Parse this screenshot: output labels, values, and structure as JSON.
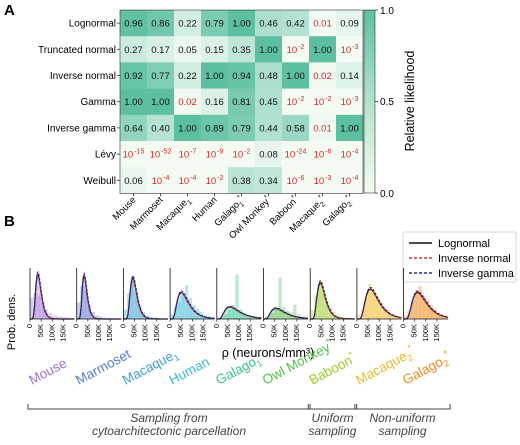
{
  "panel_labels": [
    "A",
    "B"
  ],
  "colors": {
    "cmap_high": "#5cbfa2",
    "cmap_low": "#f3fbf3",
    "sub_threshold_text": "#d62728",
    "normal_text": "#111111",
    "lognormal": "#111111",
    "inverse_normal": "#e0302f",
    "inverse_gamma": "#2b2f9e",
    "datasets": [
      "#9b70d8",
      "#5a78d8",
      "#3aa0d0",
      "#3cb8d8",
      "#36c38f",
      "#53c04a",
      "#9ccb2a",
      "#f1b72c",
      "#ef8a1c"
    ]
  },
  "legend_entries": [
    "Lognormal",
    "Inverse normal",
    "Inverse gamma"
  ],
  "bottom_groups": [
    {
      "label_lines": [
        "Sampling from",
        "cytoarchitectonic parcellation"
      ]
    },
    {
      "label_lines": [
        "Uniform",
        "sampling"
      ]
    },
    {
      "label_lines": [
        "Non-uniform",
        "sampling"
      ]
    }
  ],
  "chart_data": [
    {
      "type": "heatmap",
      "title": "",
      "colorbar_label": "Relative likelihood",
      "colorbar_ticks": [
        "0.0",
        "0.5",
        "1.0"
      ],
      "colorbar_range": [
        0,
        1
      ],
      "rows": [
        "Lognormal",
        "Truncated normal",
        "Inverse normal",
        "Gamma",
        "Inverse gamma",
        "Lévy",
        "Weibull"
      ],
      "columns": [
        {
          "base": "Mouse",
          "sub": "",
          "star": false
        },
        {
          "base": "Marmoset",
          "sub": "",
          "star": false
        },
        {
          "base": "Macaque",
          "sub": "1",
          "star": false
        },
        {
          "base": "Human",
          "sub": "",
          "star": false
        },
        {
          "base": "Galago",
          "sub": "1",
          "star": true
        },
        {
          "base": "Owl Monkey",
          "sub": "",
          "star": true
        },
        {
          "base": "Baboon",
          "sub": "",
          "star": true
        },
        {
          "base": "Macaque",
          "sub": "2",
          "star": true
        },
        {
          "base": "Galago",
          "sub": "2",
          "star": true
        }
      ],
      "cells": [
        [
          {
            "v": 0.96,
            "t": "0.96"
          },
          {
            "v": 0.86,
            "t": "0.86"
          },
          {
            "v": 0.22,
            "t": "0.22"
          },
          {
            "v": 0.79,
            "t": "0.79"
          },
          {
            "v": 1.0,
            "t": "1.00"
          },
          {
            "v": 0.46,
            "t": "0.46"
          },
          {
            "v": 0.42,
            "t": "0.42"
          },
          {
            "v": 0.01,
            "t": "0.01",
            "red": true
          },
          {
            "v": 0.09,
            "t": "0.09"
          }
        ],
        [
          {
            "v": 0.27,
            "t": "0.27"
          },
          {
            "v": 0.17,
            "t": "0.17"
          },
          {
            "v": 0.05,
            "t": "0.05"
          },
          {
            "v": 0.15,
            "t": "0.15"
          },
          {
            "v": 0.35,
            "t": "0.35"
          },
          {
            "v": 1.0,
            "t": "1.00"
          },
          {
            "v": 0,
            "t": "10",
            "e": "-2",
            "red": true
          },
          {
            "v": 1.0,
            "t": "1.00"
          },
          {
            "v": 0,
            "t": "10",
            "e": "-3",
            "red": true
          }
        ],
        [
          {
            "v": 0.92,
            "t": "0.92"
          },
          {
            "v": 0.77,
            "t": "0.77"
          },
          {
            "v": 0.22,
            "t": "0.22"
          },
          {
            "v": 1.0,
            "t": "1.00"
          },
          {
            "v": 0.94,
            "t": "0.94"
          },
          {
            "v": 0.48,
            "t": "0.48"
          },
          {
            "v": 1.0,
            "t": "1.00"
          },
          {
            "v": 0.02,
            "t": "0.02",
            "red": true
          },
          {
            "v": 0.14,
            "t": "0.14"
          }
        ],
        [
          {
            "v": 1.0,
            "t": "1.00"
          },
          {
            "v": 1.0,
            "t": "1.00"
          },
          {
            "v": 0.02,
            "t": "0.02",
            "red": true
          },
          {
            "v": 0.16,
            "t": "0.16"
          },
          {
            "v": 0.81,
            "t": "0.81"
          },
          {
            "v": 0.45,
            "t": "0.45"
          },
          {
            "v": 0,
            "t": "10",
            "e": "-2",
            "red": true
          },
          {
            "v": 0,
            "t": "10",
            "e": "-2",
            "red": true
          },
          {
            "v": 0,
            "t": "10",
            "e": "-3",
            "red": true
          }
        ],
        [
          {
            "v": 0.64,
            "t": "0.64"
          },
          {
            "v": 0.4,
            "t": "0.40"
          },
          {
            "v": 1.0,
            "t": "1.00"
          },
          {
            "v": 0.89,
            "t": "0.89"
          },
          {
            "v": 0.79,
            "t": "0.79"
          },
          {
            "v": 0.44,
            "t": "0.44"
          },
          {
            "v": 0.58,
            "t": "0.58"
          },
          {
            "v": 0.01,
            "t": "0.01",
            "red": true
          },
          {
            "v": 1.0,
            "t": "1.00"
          }
        ],
        [
          {
            "v": 0,
            "t": "10",
            "e": "-15",
            "red": true
          },
          {
            "v": 0,
            "t": "10",
            "e": "-52",
            "red": true
          },
          {
            "v": 0,
            "t": "10",
            "e": "-7",
            "red": true
          },
          {
            "v": 0,
            "t": "10",
            "e": "-9",
            "red": true
          },
          {
            "v": 0,
            "t": "10",
            "e": "-2",
            "red": true
          },
          {
            "v": 0.08,
            "t": "0.08"
          },
          {
            "v": 0,
            "t": "10",
            "e": "-24",
            "red": true
          },
          {
            "v": 0,
            "t": "10",
            "e": "-6",
            "red": true
          },
          {
            "v": 0,
            "t": "10",
            "e": "-4",
            "red": true
          }
        ],
        [
          {
            "v": 0.06,
            "t": "0.06"
          },
          {
            "v": 0,
            "t": "10",
            "e": "-4",
            "red": true
          },
          {
            "v": 0,
            "t": "10",
            "e": "-4",
            "red": true
          },
          {
            "v": 0,
            "t": "10",
            "e": "-2",
            "red": true
          },
          {
            "v": 0.38,
            "t": "0.38"
          },
          {
            "v": 0.34,
            "t": "0.34"
          },
          {
            "v": 0,
            "t": "10",
            "e": "-6",
            "red": true
          },
          {
            "v": 0,
            "t": "10",
            "e": "-3",
            "red": true
          },
          {
            "v": 0,
            "t": "10",
            "e": "-4",
            "red": true
          }
        ]
      ]
    },
    {
      "type": "line",
      "title": "",
      "ylabel": "Prob. dens.",
      "xlabel": "ρ (neurons/mm³)",
      "xlim": [
        0,
        200000
      ],
      "x_ticks": [
        "0",
        "50K",
        "100K",
        "150K"
      ],
      "series_names": [
        "Lognormal",
        "Inverse normal",
        "Inverse gamma"
      ],
      "panels": [
        {
          "dataset": "Mouse",
          "sub": "",
          "star": false,
          "peak_x": 35000,
          "height": 0.92,
          "spread": 0.35,
          "hist_heights": [
            0.45,
            0.55,
            0.5,
            0.35,
            0.2,
            0.12,
            0.08,
            0.06,
            0.05,
            0.04,
            0.03,
            0.02
          ]
        },
        {
          "dataset": "Marmoset",
          "sub": "",
          "star": false,
          "peak_x": 33000,
          "height": 0.9,
          "spread": 0.33,
          "hist_heights": [
            0.35,
            0.7,
            0.6,
            0.3,
            0.15,
            0.08,
            0.05,
            0.03,
            0.02,
            0.02,
            0.01,
            0.01
          ]
        },
        {
          "dataset": "Macaque",
          "sub": "1",
          "star": false,
          "peak_x": 42000,
          "height": 0.85,
          "spread": 0.35,
          "hist_heights": [
            0.2,
            0.55,
            0.82,
            0.55,
            0.3,
            0.15,
            0.08,
            0.05,
            0.03,
            0.02,
            0.01,
            0.01
          ]
        },
        {
          "dataset": "Human",
          "sub": "",
          "star": false,
          "peak_x": 50000,
          "height": 0.55,
          "spread": 0.5,
          "hist_heights": [
            0.1,
            0.25,
            0.35,
            0.5,
            0.72,
            0.45,
            0.3,
            0.22,
            0.15,
            0.08,
            0.05,
            0.03
          ]
        },
        {
          "dataset": "Galago",
          "sub": "1",
          "star": true,
          "peak_x": 58000,
          "height": 0.25,
          "spread": 0.55,
          "hist_heights": [
            0.02,
            0.05,
            0.1,
            0.2,
            0.3,
            0.95,
            0.2,
            0.12,
            0.08,
            0.05,
            0.03,
            0.02
          ]
        },
        {
          "dataset": "Owl Monkey",
          "sub": "",
          "star": true,
          "peak_x": 55000,
          "height": 0.22,
          "spread": 0.55,
          "hist_heights": [
            0.03,
            0.06,
            0.12,
            0.22,
            0.88,
            0.25,
            0.18,
            0.14,
            0.3,
            0.1,
            0.05,
            0.03
          ]
        },
        {
          "dataset": "Baboon",
          "sub": "",
          "star": true,
          "peak_x": 45000,
          "height": 0.75,
          "spread": 0.4,
          "hist_heights": [
            0.2,
            0.5,
            0.75,
            0.6,
            0.4,
            0.25,
            0.15,
            0.1,
            0.06,
            0.04,
            0.02,
            0.01
          ]
        },
        {
          "dataset": "Macaque",
          "sub": "2",
          "star": true,
          "peak_x": 60000,
          "height": 0.62,
          "spread": 0.48,
          "hist_heights": [
            0.1,
            0.2,
            0.45,
            0.75,
            0.6,
            0.45,
            0.35,
            0.25,
            0.18,
            0.1,
            0.05,
            0.03
          ]
        },
        {
          "dataset": "Galago",
          "sub": "2",
          "star": true,
          "peak_x": 62000,
          "height": 0.55,
          "spread": 0.5,
          "hist_heights": [
            0.08,
            0.18,
            0.4,
            0.62,
            0.7,
            0.5,
            0.4,
            0.3,
            0.22,
            0.12,
            0.08,
            0.05
          ]
        }
      ]
    }
  ]
}
